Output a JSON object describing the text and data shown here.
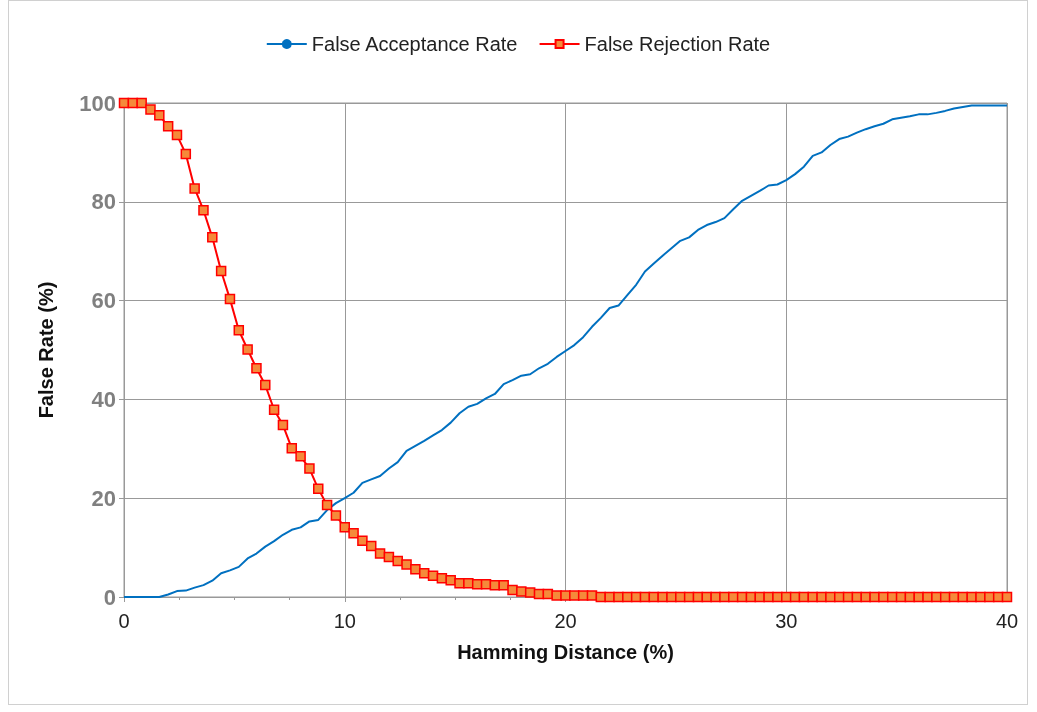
{
  "chart_data": {
    "type": "line",
    "xlabel": "Hamming Distance (%)",
    "ylabel": "False Rate (%)",
    "x": [
      0,
      0.4,
      0.8,
      1.2,
      1.6,
      2,
      2.4,
      2.8,
      3.2,
      3.6,
      4,
      4.4,
      4.8,
      5.2,
      5.6,
      6,
      6.4,
      6.8,
      7.2,
      7.6,
      8,
      8.4,
      8.8,
      9.2,
      9.6,
      10,
      10.4,
      10.8,
      11.2,
      11.6,
      12,
      12.4,
      12.8,
      13.2,
      13.6,
      14,
      14.4,
      14.8,
      15.2,
      15.6,
      16,
      16.4,
      16.8,
      17.2,
      17.6,
      18,
      18.4,
      18.8,
      19.2,
      19.6,
      20,
      20.4,
      20.8,
      21.2,
      21.6,
      22,
      22.4,
      22.8,
      23.2,
      23.6,
      24,
      24.4,
      24.8,
      25.2,
      25.6,
      26,
      26.4,
      26.8,
      27.2,
      27.6,
      28,
      28.4,
      28.8,
      29.2,
      29.6,
      30,
      30.4,
      30.8,
      31.2,
      31.6,
      32,
      32.4,
      32.8,
      33.2,
      33.6,
      34,
      34.4,
      34.8,
      35.2,
      35.6,
      36,
      36.4,
      36.8,
      37.2,
      37.6,
      38,
      38.4,
      38.8,
      39.2,
      39.6,
      40
    ],
    "series": [
      {
        "name": "False Acceptance Rate",
        "color": "#0070c0",
        "marker": "none",
        "values": [
          0,
          0,
          0,
          0,
          0,
          0.5,
          1.2,
          1.3,
          1.9,
          2.4,
          3.3,
          4.8,
          5.4,
          6.1,
          7.8,
          8.8,
          10.2,
          11.3,
          12.6,
          13.6,
          14.1,
          15.3,
          15.6,
          17.6,
          19.0,
          20.0,
          21.1,
          23.1,
          23.8,
          24.5,
          26.0,
          27.3,
          29.6,
          30.6,
          31.6,
          32.7,
          33.8,
          35.3,
          37.2,
          38.5,
          39.1,
          40.2,
          41.1,
          43.1,
          43.9,
          44.8,
          45.1,
          46.3,
          47.2,
          48.6,
          49.8,
          51.0,
          52.6,
          54.7,
          56.5,
          58.5,
          59.0,
          61.1,
          63.2,
          65.9,
          67.5,
          69.1,
          70.6,
          72.1,
          72.8,
          74.3,
          75.3,
          75.9,
          76.7,
          78.5,
          80.2,
          81.2,
          82.2,
          83.3,
          83.5,
          84.4,
          85.6,
          87.1,
          89.3,
          90.0,
          91.5,
          92.7,
          93.2,
          94.0,
          94.7,
          95.3,
          95.8,
          96.7,
          97.0,
          97.3,
          97.7,
          97.7,
          98.0,
          98.4,
          98.9,
          99.2,
          99.5,
          99.5,
          99.5,
          99.5,
          99.5
        ]
      },
      {
        "name": "False Rejection Rate",
        "color": "#ff0000",
        "marker": "square",
        "values": [
          100,
          100,
          100,
          98.7,
          97.5,
          95.3,
          93.5,
          89.7,
          82.7,
          78.3,
          72.8,
          66.0,
          60.3,
          54.0,
          50.1,
          46.3,
          42.9,
          37.9,
          34.8,
          30.1,
          28.5,
          26.0,
          21.9,
          18.6,
          16.5,
          14.1,
          12.9,
          11.4,
          10.3,
          8.8,
          8.1,
          7.3,
          6.6,
          5.6,
          4.8,
          4.3,
          3.8,
          3.4,
          2.8,
          2.8,
          2.6,
          2.6,
          2.4,
          2.4,
          1.4,
          1.1,
          0.9,
          0.6,
          0.6,
          0.3,
          0.3,
          0.3,
          0.3,
          0.3,
          0,
          0,
          0,
          0,
          0,
          0,
          0,
          0,
          0,
          0,
          0,
          0,
          0,
          0,
          0,
          0,
          0,
          0,
          0,
          0,
          0,
          0,
          0,
          0,
          0,
          0,
          0,
          0,
          0,
          0,
          0,
          0,
          0,
          0,
          0,
          0,
          0,
          0,
          0,
          0,
          0,
          0,
          0,
          0,
          0,
          0,
          0
        ]
      }
    ],
    "xlim": [
      0,
      40
    ],
    "xticks": [
      0,
      10,
      20,
      30,
      40
    ],
    "ylim": [
      0,
      100
    ],
    "yticks": [
      0,
      20,
      40,
      60,
      80,
      100
    ],
    "grid": true,
    "legend": "top",
    "line_style": "solid"
  }
}
